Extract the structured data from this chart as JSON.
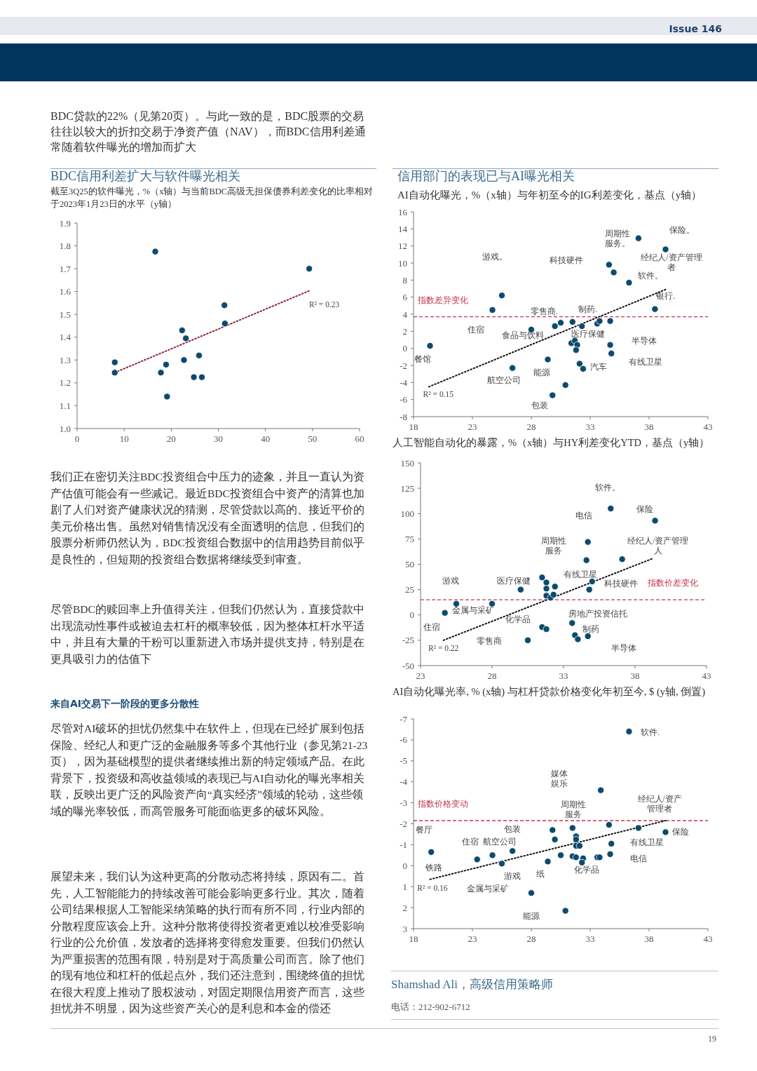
{
  "chart_data": [
    {
      "type": "other",
      "annotations": [
        "Issue 146"
      ]
    },
    {
      "type": "other",
      "annotations": [
        "BDC贷款的22%（见第20页）。与此一致的是，BDC股票的交易往往以较大的折扣交易于净资产值（NAV），而BDC信用利差通常随着软件曝光的增加而扩大"
      ]
    },
    {
      "type": "scatter",
      "title": "BDC信用利差扩大与软件曝光相关",
      "subtitle": "截至3Q25的软件曝光，%（x轴）与当前BDC高级无担保债券利差变化的比率相对于2023年1月23日的水平（y轴）",
      "xlim": [
        0,
        60
      ],
      "xticks": [
        0,
        10,
        20,
        30,
        40,
        50,
        60
      ],
      "ylim": [
        1.0,
        1.9
      ],
      "yticks": [
        {
          "value": 1.0,
          "label": "1.0"
        },
        1.1,
        1.2,
        1.3,
        1.4,
        1.5,
        1.6,
        1.7,
        1.8,
        1.9
      ],
      "marker": "circle",
      "series": [
        {
          "color": "#0d4a6e",
          "x": [
            8.0,
            8.0,
            16.6,
            17.8,
            18.9,
            19.1,
            22.3,
            23.1,
            22.7,
            24.8,
            25.9,
            26.5,
            31.3,
            31.4,
            49.3
          ],
          "values": [
            1.29,
            1.245,
            1.775,
            1.245,
            1.28,
            1.14,
            1.43,
            1.395,
            1.3,
            1.225,
            1.32,
            1.225,
            1.54,
            1.46,
            1.7
          ]
        },
        {
          "type": "line",
          "color": "#8b2040",
          "line_style": "dotted",
          "marker": "none",
          "x": [
            8.0,
            49.5
          ],
          "values": [
            1.245,
            1.605
          ]
        }
      ],
      "annotations": [
        "R² = 0.23"
      ]
    },
    {
      "type": "scatter",
      "title": "信用部门的表现已与AI曝光相关",
      "subtitle": "AI自动化曝光，%（x轴）与年初至今的IG利差变化，基点（y轴）",
      "xlim": [
        18,
        43
      ],
      "xticks": [
        18,
        23,
        28,
        33,
        38,
        43
      ],
      "ylim": [
        -8,
        16
      ],
      "yticks": [
        -8,
        -6,
        -4,
        -2,
        0,
        2,
        4,
        6,
        8,
        10,
        12,
        14,
        16
      ],
      "marker": "circle",
      "series": [
        {
          "color": "#0d4a6e",
          "x": [
            19.4,
            24.7,
            25.5,
            26.4,
            28.0,
            29.4,
            30.0,
            30.5,
            29.8,
            30.9,
            31.5,
            31.4,
            31.7,
            31.9,
            31.8,
            32.1,
            32.4,
            32.3,
            33.6,
            33.8,
            34.7,
            34.7,
            34.8,
            34.6,
            35.0,
            36.3,
            37.1,
            39.4,
            38.5
          ],
          "values": [
            0.3,
            4.5,
            6.2,
            -2.3,
            2.2,
            -1.3,
            2.6,
            3.0,
            -5.5,
            -4.3,
            3.1,
            0.6,
            0.9,
            0.4,
            -0.2,
            -1.8,
            -2.4,
            2.6,
            2.9,
            3.2,
            3.2,
            0.4,
            -0.6,
            9.8,
            8.9,
            7.7,
            12.9,
            11.6,
            4.6
          ]
        },
        {
          "type": "line",
          "color": "#111111",
          "line_style": "dotted",
          "marker": "none",
          "x": [
            19.3,
            39.4
          ],
          "values": [
            -4.5,
            6.9
          ]
        }
      ],
      "ref_lines": [
        {
          "axis": "y",
          "value": 3.7,
          "label": "指数差异变化",
          "color": "#c0394f",
          "line_style": "dashed"
        }
      ],
      "annotations": [
        "保险。",
        "周期性服务。",
        "经纪人/资产管理者",
        "游戏。",
        "科技硬件",
        "软件。",
        "银行.",
        "零售商.",
        "制药.",
        "住宿",
        "食品与饮料",
        "医疗保健",
        "半导体",
        "餐馆",
        "有线卫星",
        "汽车",
        "能源",
        "航空公司",
        "R² = 0.15",
        "包装"
      ]
    },
    {
      "type": "other",
      "annotations": [
        "我们正在密切关注BDC投资组合中压力的迹象，并且一直认为资产估值可能会有一些减记。最近BDC投资组合中资产的清算也加剧了人们对资产健康状况的猜测，尽管贷款以高的、接近平价的美元价格出售。虽然对销售情况没有全面透明的信息，但我们的股票分析师仍然认为，BDC投资组合数据中的信用趋势目前似乎是良性的，但短期的投资组合数据将继续受到审查。",
        "尽管BDC的赎回率上升值得关注，但我们仍然认为，直接贷款中出现流动性事件或被迫去杠杆的概率较低，因为整体杠杆水平适中，并且有大量的干粉可以重新进入市场并提供支持，特别是在更具吸引力的估值下"
      ]
    },
    {
      "type": "scatter",
      "title": "人工智能自动化的暴露，%（x轴）与HY利差变化YTD，基点（y轴）",
      "xlim": [
        23,
        43
      ],
      "xticks": [
        23,
        28,
        33,
        38,
        43
      ],
      "ylim": [
        -50,
        150
      ],
      "yticks": [
        -50,
        -25,
        0,
        25,
        50,
        75,
        100,
        125,
        150
      ],
      "marker": "circle",
      "series": [
        {
          "color": "#0d4a6e",
          "x": [
            24.7,
            25.5,
            28.0,
            30.0,
            30.5,
            31.5,
            31.8,
            31.8,
            31.8,
            32.1,
            32.3,
            32.4,
            31.5,
            31.8,
            33.6,
            33.8,
            34.0,
            34.7,
            34.8,
            35.0,
            34.6,
            34.7,
            36.3,
            39.4,
            37.1
          ],
          "values": [
            2,
            11,
            11,
            25,
            -25,
            37,
            32,
            26,
            19,
            17,
            20,
            28,
            -12,
            -14,
            -8,
            -20,
            -24,
            -21,
            25,
            33,
            54,
            72,
            105,
            93,
            55
          ]
        },
        {
          "type": "line",
          "color": "#111111",
          "line_style": "dotted",
          "marker": "none",
          "x": [
            24.6,
            39.3
          ],
          "values": [
            -25,
            56
          ]
        }
      ],
      "ref_lines": [
        {
          "axis": "y",
          "value": 15,
          "label": "指数价差变化",
          "color": "#c0394f",
          "line_style": "dashed"
        }
      ],
      "annotations": [
        "软件。",
        "保险",
        "电信",
        "周期性服务",
        "经纪人/资产管理人",
        "有线卫星",
        "科技硬件",
        "医疗保健",
        "游戏",
        "金属与采矿",
        "化学品",
        "房地产投资信托",
        "制药",
        "住宿",
        "零售商",
        "R² = 0.22",
        "半导体"
      ]
    },
    {
      "type": "other",
      "title": "来自AI交易下一阶段的更多分散性",
      "annotations": [
        "尽管对AI破坏的担忧仍然集中在软件上，但现在已经扩展到包括保险、经纪人和更广泛的金融服务等多个其他行业（参见第21-23页），因为基础模型的提供者继续推出新的特定领域产品。在此背景下，投资级和高收益领域的表现已与AI自动化的曝光率相关联，反映出更广泛的风险资产向“真实经济”领域的轮动，这些领域的曝光率较低，而高管服务可能面临更多的破坏风险。",
        "展望未来，我们认为这种更高的分散动态将持续，原因有二。首先，人工智能能力的持续改善可能会影响更多行业。其次，随着公司结果根据人工智能采纳策略的执行而有所不同，行业内部的分散程度应该会上升。这种分散将使得投资者更难以校准受影响行业的公允价值，发放者的选择将变得愈发重要。但我们仍然认为严重损害的范围有限，特别是对于高质量公司而言。除了他们的现有地位和杠杆的低起点外，我们还注意到，围绕终值的担忧在很大程度上推动了股权波动，对固定期限信用资产而言，这些担忧并不明显，因为这些资产关心的是利息和本金的偿还"
      ]
    },
    {
      "type": "scatter",
      "title": "AI自动化曝光率, % (x轴) 与杠杆贷款价格变化年初至今, $ (y轴, 倒置)",
      "xlim": [
        18,
        43
      ],
      "xticks": [
        18,
        23,
        28,
        33,
        38,
        43
      ],
      "ylim": [
        3,
        -7
      ],
      "yticks": [
        -7,
        -6,
        -5,
        -4,
        -3,
        -2,
        -1,
        0,
        1,
        2,
        3
      ],
      "marker": "circle",
      "series": [
        {
          "color": "#0d4a6e",
          "x": [
            36.3,
            33.9,
            34.6,
            37.1,
            39.4,
            34.8,
            34.7,
            19.5,
            23.4,
            24.7,
            26.4,
            25.5,
            28.0,
            29.4,
            29.8,
            30.0,
            30.5,
            30.9,
            31.5,
            31.8,
            31.8,
            31.8,
            32.1,
            31.5,
            31.8,
            32.4,
            32.3,
            33.6,
            33.8
          ],
          "values": [
            -6.4,
            -3.6,
            -1.95,
            -1.8,
            -1.6,
            -1.05,
            -0.55,
            -0.65,
            -0.3,
            -0.5,
            -0.7,
            -0.1,
            1.3,
            -0.2,
            -1.7,
            -1.25,
            -0.5,
            2.15,
            -1.8,
            -1.4,
            -1.25,
            -0.95,
            -0.95,
            -0.45,
            -0.4,
            -0.35,
            -0.15,
            -0.4,
            -0.4
          ]
        },
        {
          "type": "line",
          "color": "#111111",
          "line_style": "dotted",
          "marker": "none",
          "x": [
            19.4,
            39.4
          ],
          "values": [
            0.65,
            -2.15
          ]
        }
      ],
      "ref_lines": [
        {
          "axis": "y",
          "value": -2.15,
          "label": "指数价格变动",
          "color": "#c0394f",
          "line_style": "dashed"
        }
      ],
      "annotations": [
        "软件.",
        "媒体娱乐",
        "经纪人/资产管理者",
        "周期性服务",
        "餐厅",
        "包装",
        "保险",
        "住宿",
        "航空公司",
        "有线卫星",
        "电信",
        "铁路",
        "化学品",
        "纸",
        "游戏",
        "R² = 0.16",
        "金属与采矿",
        "能源"
      ]
    },
    {
      "type": "other",
      "title": "Shamshad Ali，高级信用策略师",
      "annotations": [
        "电话：212-902-6712"
      ]
    },
    {
      "type": "other",
      "annotations": [
        "19"
      ]
    }
  ]
}
